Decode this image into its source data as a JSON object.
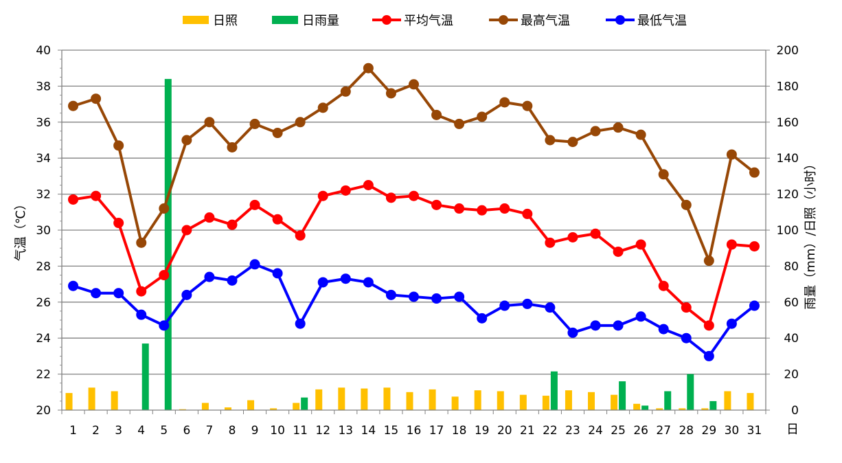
{
  "chart_data": {
    "type": "bar+line",
    "categories": [
      "1",
      "2",
      "3",
      "4",
      "5",
      "6",
      "7",
      "8",
      "9",
      "10",
      "11",
      "12",
      "13",
      "14",
      "15",
      "16",
      "17",
      "18",
      "19",
      "20",
      "21",
      "22",
      "23",
      "24",
      "25",
      "26",
      "27",
      "28",
      "29",
      "30",
      "31"
    ],
    "xlabel": "日",
    "ylabel_left": "气温（℃）",
    "ylabel_right": "雨量（mm）/日照（小时）",
    "ylim_left": [
      20,
      40
    ],
    "ylim_right": [
      0,
      200
    ],
    "yticks_left": [
      "20",
      "22",
      "24",
      "26",
      "28",
      "30",
      "32",
      "34",
      "36",
      "38",
      "40"
    ],
    "yticks_right": [
      "0",
      "20",
      "40",
      "60",
      "80",
      "100",
      "120",
      "140",
      "160",
      "180",
      "200"
    ],
    "grid": true,
    "legend_position": "top",
    "series": [
      {
        "name": "日照",
        "kind": "bar",
        "axis": "right",
        "color": "#FFC000",
        "values": [
          9.5,
          12.5,
          10.5,
          0,
          0,
          0.5,
          4,
          1.5,
          5.5,
          1,
          4,
          11.5,
          12.5,
          12,
          12.5,
          10,
          11.5,
          7.5,
          11,
          10.5,
          8.5,
          8,
          11,
          10,
          8.5,
          3.5,
          1,
          1,
          1,
          10.5,
          9.5
        ]
      },
      {
        "name": "日雨量",
        "kind": "bar",
        "axis": "right",
        "color": "#00B050",
        "values": [
          0,
          0,
          0,
          37,
          184,
          0,
          0,
          0,
          0,
          0,
          7,
          0,
          0,
          0,
          0,
          0,
          0,
          0,
          0,
          0,
          0,
          21.5,
          0,
          0,
          16,
          2.5,
          10.5,
          20,
          5,
          0,
          0
        ]
      },
      {
        "name": "平均气温",
        "kind": "line",
        "axis": "left",
        "color": "#FF0000",
        "values": [
          31.7,
          31.9,
          30.4,
          26.6,
          27.5,
          30.0,
          30.7,
          30.3,
          31.4,
          30.6,
          29.7,
          31.9,
          32.2,
          32.5,
          31.8,
          31.9,
          31.4,
          31.2,
          31.1,
          31.2,
          30.9,
          29.3,
          29.6,
          29.8,
          28.8,
          29.2,
          26.9,
          25.7,
          24.7,
          29.2,
          29.1
        ]
      },
      {
        "name": "最高气温",
        "kind": "line",
        "axis": "left",
        "color": "#974706",
        "values": [
          36.9,
          37.3,
          34.7,
          29.3,
          31.2,
          35.0,
          36.0,
          34.6,
          35.9,
          35.4,
          36.0,
          36.8,
          37.7,
          39.0,
          37.6,
          38.1,
          36.4,
          35.9,
          36.3,
          37.1,
          36.9,
          35.0,
          34.9,
          35.5,
          35.7,
          35.3,
          33.1,
          31.4,
          28.3,
          34.2,
          33.2
        ]
      },
      {
        "name": "最低气温",
        "kind": "line",
        "axis": "left",
        "color": "#0000FF",
        "values": [
          26.9,
          26.5,
          26.5,
          25.3,
          24.7,
          26.4,
          27.4,
          27.2,
          28.1,
          27.6,
          24.8,
          27.1,
          27.3,
          27.1,
          26.4,
          26.3,
          26.2,
          26.3,
          25.1,
          25.8,
          25.9,
          25.7,
          24.3,
          24.7,
          24.7,
          25.2,
          24.5,
          24.0,
          23.0,
          24.8,
          25.8
        ]
      }
    ]
  }
}
